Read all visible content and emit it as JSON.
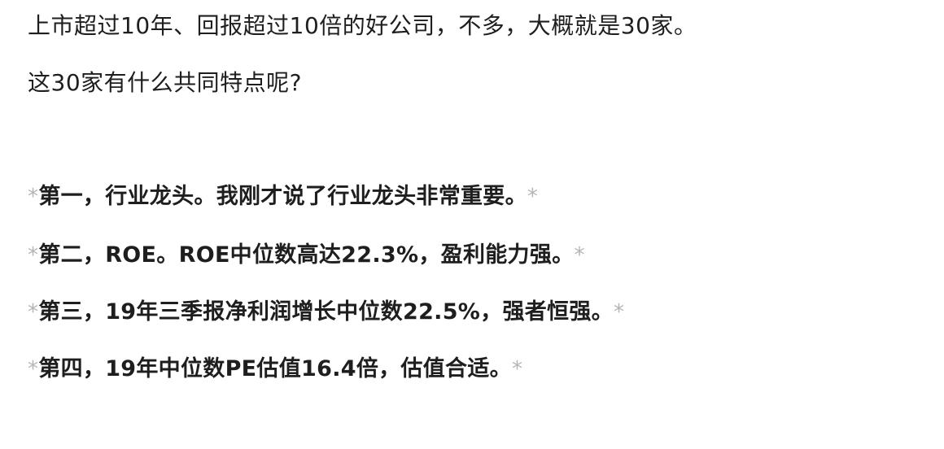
{
  "paragraphs": [
    "上市超过10年、回报超过10倍的好公司，不多，大概就是30家。",
    "这30家有什么共同特点呢?"
  ],
  "list_items": [
    "第一，行业龙头。我刚才说了行业龙头非常重要。",
    "第二，ROE。ROE中位数高达22.3%，盈利能力强。",
    "第三，19年三季报净利润增长中位数22.5%，强者恒强。",
    "第四，19年中位数PE估值16.4倍，估值合适。"
  ],
  "marker": "*"
}
